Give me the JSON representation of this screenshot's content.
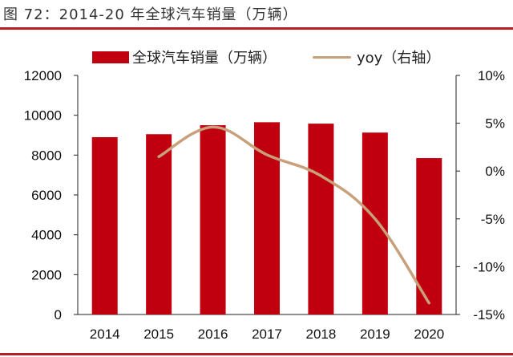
{
  "title": "图 72：2014-20 年全球汽车销量（万辆）",
  "legend": {
    "bar_label": "全球汽车销量（万辆）",
    "line_label": "yoy（右轴）"
  },
  "colors": {
    "bar": "#c0000f",
    "line": "#c8a07a",
    "accent": "#b81f24"
  },
  "chart_data": {
    "type": "bar",
    "categories": [
      "2014",
      "2015",
      "2016",
      "2017",
      "2018",
      "2019",
      "2020"
    ],
    "series": [
      {
        "name": "全球汽车销量（万辆）",
        "type": "bar",
        "axis": "left",
        "values": [
          8900,
          9050,
          9500,
          9650,
          9580,
          9130,
          7850
        ]
      },
      {
        "name": "yoy（右轴）",
        "type": "line",
        "axis": "right",
        "values": [
          null,
          1.5,
          4.6,
          1.7,
          -0.5,
          -5.0,
          -13.8
        ]
      }
    ],
    "y_left": {
      "min": 0,
      "max": 12000,
      "ticks": [
        "0",
        "2000",
        "4000",
        "6000",
        "8000",
        "10000",
        "12000"
      ]
    },
    "y_right": {
      "min": -15,
      "max": 10,
      "ticks": [
        "-15%",
        "-10%",
        "-5%",
        "0%",
        "5%",
        "10%"
      ]
    },
    "grid": false,
    "legend_position": "top"
  }
}
